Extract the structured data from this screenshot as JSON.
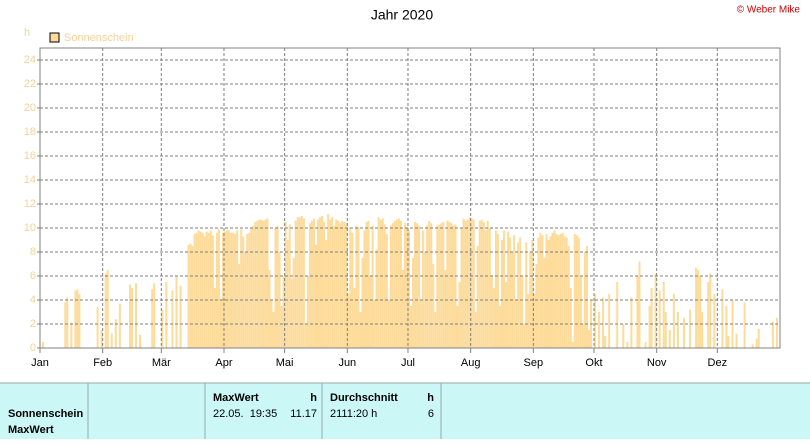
{
  "chart_data": {
    "type": "bar",
    "title": "Jahr 2020",
    "credit": "© Weber Mike",
    "y_label": "h",
    "series": [
      {
        "name": "Sonnenschein",
        "color": "#fddc9b",
        "values": [
          0,
          0.5,
          0,
          0,
          0,
          0,
          0,
          0,
          0,
          0,
          0,
          0,
          3.8,
          4.2,
          0,
          2.1,
          0,
          4.8,
          4.9,
          4.5,
          0,
          0,
          0,
          0,
          0,
          0,
          0,
          0,
          3.4,
          0,
          1.5,
          0,
          6.2,
          6.5,
          0,
          1.2,
          0,
          2.4,
          0,
          3.7,
          0,
          0,
          0,
          0,
          5.3,
          5.0,
          0,
          5.4,
          0,
          1.1,
          0,
          0,
          0,
          0,
          0,
          4.9,
          5.4,
          0,
          0,
          0,
          3.2,
          0,
          5.5,
          0,
          0,
          4.8,
          0,
          6.0,
          0,
          5.2,
          0,
          0,
          0,
          8.6,
          8.7,
          8.5,
          9.5,
          9.6,
          9.8,
          9.7,
          9.6,
          9.3,
          9.7,
          9.6,
          9.8,
          9.4,
          5.0,
          9.6,
          9.9,
          4.1,
          9.6,
          9.7,
          9.8,
          9.8,
          9.6,
          9.6,
          9.5,
          9.8,
          7.0,
          9.9,
          9.3,
          8.0,
          9.5,
          9.6,
          10.0,
          10.2,
          10.5,
          10.6,
          10.7,
          10.7,
          10.6,
          10.7,
          10.8,
          6.5,
          4.0,
          3.0,
          10.0,
          10.2,
          8.0,
          3.5,
          6.0,
          10.5,
          9.0,
          10.3,
          5.8,
          7.5,
          10.6,
          10.9,
          10.9,
          11.0,
          10.8,
          2.0,
          6.0,
          10.4,
          10.6,
          10.8,
          8.6,
          10.7,
          10.9,
          11.0,
          10.5,
          9.0,
          11.17,
          10.7,
          10.9,
          10.2,
          10.7,
          10.6,
          10.4,
          10.6,
          10.5,
          10.4,
          4.5,
          10.0,
          9.6,
          5.0,
          10.2,
          10.1,
          3.0,
          7.5,
          9.8,
          10.5,
          10.6,
          6.0,
          10.2,
          4.0,
          8.2,
          10.9,
          10.7,
          10.8,
          10.3,
          9.5,
          4.0,
          10.2,
          10.4,
          10.6,
          10.7,
          10.8,
          10.6,
          6.5,
          10.4,
          10.0,
          9.8,
          3.5,
          7.5,
          10.5,
          10.4,
          10.2,
          4.0,
          9.8,
          8.0,
          10.2,
          10.6,
          10.4,
          7.0,
          3.0,
          10.2,
          10.3,
          10.4,
          10.5,
          6.5,
          10.6,
          10.5,
          10.4,
          10.2,
          10.3,
          3.5,
          5.5,
          10.0,
          10.8,
          10.6,
          10.7,
          10.9,
          10.8,
          10.7,
          3.0,
          8.5,
          10.6,
          10.7,
          10.5,
          9.8,
          10.6,
          10.0,
          6.0,
          5.0,
          9.8,
          9.5,
          3.5,
          9.0,
          9.8,
          5.5,
          9.7,
          9.2,
          8.0,
          9.4,
          4.0,
          8.8,
          9.2,
          6.0,
          2.0,
          8.8,
          4.5,
          8.0,
          9.0,
          4.5,
          7.0,
          9.2,
          9.6,
          9.4,
          7.5,
          9.5,
          9.0,
          9.3,
          9.6,
          9.8,
          9.5,
          9.4,
          9.5,
          9.6,
          9.3,
          9.2,
          8.5,
          5.0,
          0.5,
          9.5,
          9.4,
          9.2,
          6.0,
          2.0,
          8.0,
          8.5,
          1.5,
          4.0,
          0,
          4.5,
          0,
          3.0,
          0,
          4.2,
          1.0,
          0,
          4.5,
          0,
          0,
          0,
          5.5,
          0,
          0,
          2.0,
          0,
          0.5,
          0,
          4.2,
          0,
          0,
          6.0,
          7.2,
          0,
          0,
          0.5,
          0,
          3.5,
          5.0,
          0,
          6.2,
          0,
          4.8,
          0,
          5.5,
          3.0,
          0,
          1.5,
          0,
          4.5,
          0,
          3.0,
          0,
          0,
          2.5,
          0,
          0,
          3.2,
          0,
          0,
          6.7,
          6.5,
          6.0,
          3.0,
          0,
          0,
          5.5,
          6.2,
          0,
          4.5,
          0,
          0,
          0,
          4.9,
          0,
          3.5,
          1.0,
          0,
          4.0,
          0,
          1.2,
          0,
          0,
          0,
          3.8,
          0,
          0,
          0,
          0.3,
          0,
          0.8,
          1.6,
          0,
          0,
          0,
          0,
          0,
          0,
          2.2,
          0,
          2.5,
          0
        ]
      }
    ],
    "xlim": [
      0,
      366
    ],
    "xticks": [
      {
        "value": 0,
        "label": "Jan"
      },
      {
        "value": 31,
        "label": "Feb"
      },
      {
        "value": 60,
        "label": "Mär"
      },
      {
        "value": 91,
        "label": "Apr"
      },
      {
        "value": 121,
        "label": "Mai"
      },
      {
        "value": 152,
        "label": "Jun"
      },
      {
        "value": 182,
        "label": "Jul"
      },
      {
        "value": 213,
        "label": "Aug"
      },
      {
        "value": 244,
        "label": "Sep"
      },
      {
        "value": 274,
        "label": "Okt"
      },
      {
        "value": 305,
        "label": "Nov"
      },
      {
        "value": 335,
        "label": "Dez"
      }
    ],
    "ylim": [
      0,
      25
    ],
    "yticks": [
      0,
      2,
      4,
      6,
      8,
      10,
      12,
      14,
      16,
      18,
      20,
      22,
      24
    ],
    "grid": true,
    "legend": "top-left"
  },
  "table": {
    "row_labels": [
      "Sonnenschein",
      "MaxWert"
    ],
    "maxwert": {
      "header": "MaxWert",
      "unit": "h",
      "time": "22.05.  19:35",
      "value": "11.17"
    },
    "durchschnitt": {
      "header": "Durchschnitt",
      "unit": "h",
      "time": "2111:20 h",
      "value": "6"
    }
  }
}
